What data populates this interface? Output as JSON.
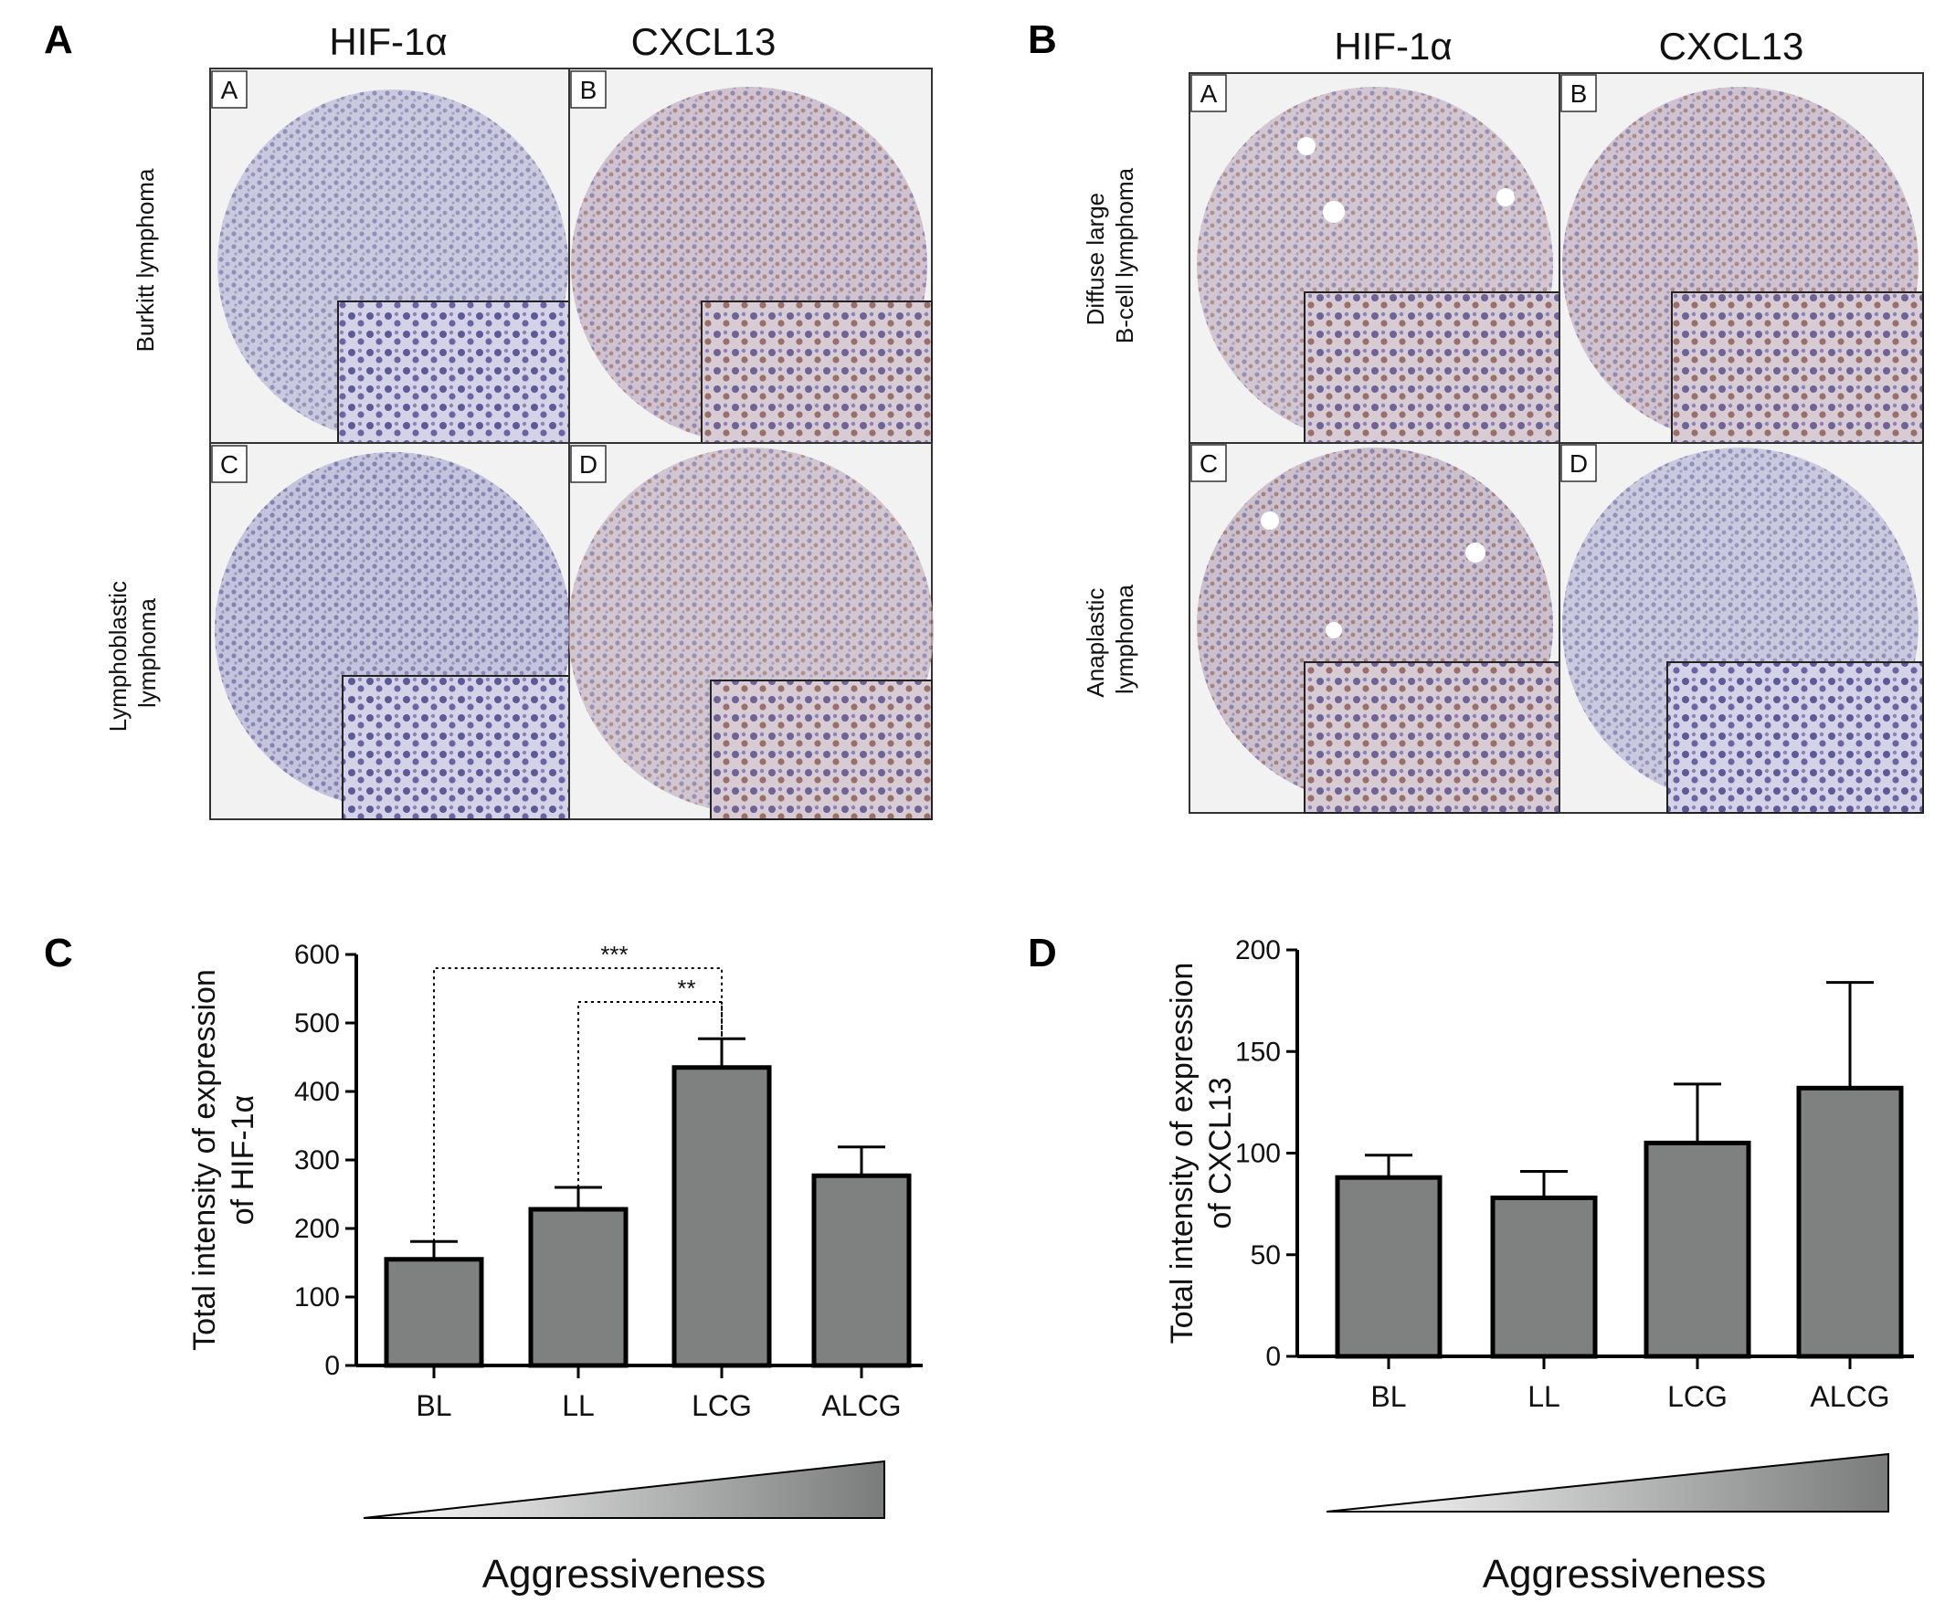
{
  "panels": {
    "A": {
      "letter": "A",
      "col_headers": [
        "HIF-1α",
        "CXCL13"
      ],
      "row_labels": [
        [
          "Burkitt lymphoma"
        ],
        [
          "Lymphoblastic",
          "lymphoma"
        ]
      ],
      "tiles": [
        "A",
        "B",
        "C",
        "D"
      ]
    },
    "B": {
      "letter": "B",
      "col_headers": [
        "HIF-1α",
        "CXCL13"
      ],
      "row_labels": [
        [
          "Diffuse large",
          "B-cell lymphoma"
        ],
        [
          "Anaplastic",
          "lymphoma"
        ]
      ],
      "tiles": [
        "A",
        "B",
        "C",
        "D"
      ]
    },
    "C": {
      "letter": "C",
      "aggressiveness_label": "Aggressiveness"
    },
    "D": {
      "letter": "D",
      "aggressiveness_label": "Aggressiveness"
    }
  },
  "colors": {
    "bar_fill": "#7f8180",
    "bar_stroke": "#000000",
    "tissue": "#9c9cc6",
    "tissue_brown": "#a78f9e",
    "tile_bg": "#eeeeee",
    "gradient_light": "#ffffff",
    "gradient_dark": "#7a7b7b"
  },
  "chart_data": [
    {
      "id": "C",
      "type": "bar",
      "categories": [
        "BL",
        "LL",
        "LCG",
        "ALCG"
      ],
      "values": [
        155,
        228,
        435,
        277
      ],
      "errors": [
        26,
        32,
        42,
        42
      ],
      "ylabel": [
        "Total intensity of expression",
        "of HIF-1α"
      ],
      "ylim": [
        0,
        600
      ],
      "yticks": [
        0,
        100,
        200,
        300,
        400,
        500,
        600
      ],
      "significance": [
        {
          "from": "BL",
          "to": "LCG",
          "label": "***"
        },
        {
          "from": "LL",
          "to": "LCG",
          "label": "**"
        }
      ]
    },
    {
      "id": "D",
      "type": "bar",
      "categories": [
        "BL",
        "LL",
        "LCG",
        "ALCG"
      ],
      "values": [
        88,
        78,
        105,
        132
      ],
      "errors": [
        11,
        13,
        29,
        52
      ],
      "ylabel": [
        "Total intensity of expression",
        "of CXCL13"
      ],
      "ylim": [
        0,
        200
      ],
      "yticks": [
        0,
        50,
        100,
        150,
        200
      ],
      "significance": []
    }
  ]
}
